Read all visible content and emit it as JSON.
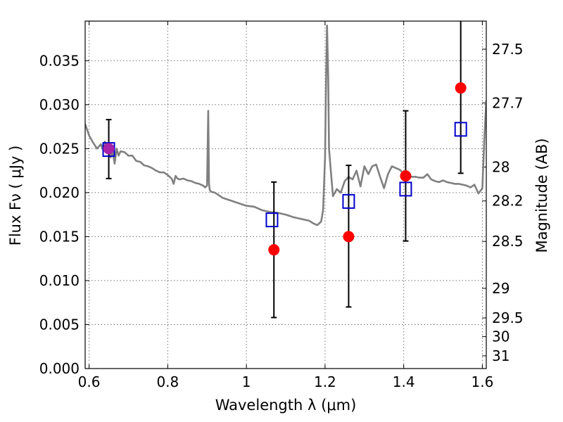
{
  "chart_data": {
    "type": "scatter",
    "xlabel": "Wavelength  λ (μm)",
    "ylabel": "Flux  Fν  ( μJy )",
    "y2label": "Magnitude (AB)",
    "xlim": [
      0.59,
      1.61
    ],
    "ylim": [
      0.0,
      0.0395
    ],
    "grid": true,
    "x_ticks": [
      0.6,
      0.8,
      1.0,
      1.2,
      1.4,
      1.6
    ],
    "x_tick_labels": [
      "0.6",
      "0.8",
      "1",
      "1.2",
      "1.4",
      "1.6"
    ],
    "y_ticks": [
      0.0,
      0.005,
      0.01,
      0.015,
      0.02,
      0.025,
      0.03,
      0.035
    ],
    "y_tick_labels": [
      "0.000",
      "0.005",
      "0.010",
      "0.015",
      "0.020",
      "0.025",
      "0.030",
      "0.035"
    ],
    "magnitude_ticks": [
      {
        "label": "27.5",
        "mag": 27.5
      },
      {
        "label": "27.7",
        "mag": 27.7
      },
      {
        "label": "28",
        "mag": 28.0
      },
      {
        "label": "28.2",
        "mag": 28.2
      },
      {
        "label": "28.5",
        "mag": 28.5
      },
      {
        "label": "29",
        "mag": 29.0
      },
      {
        "label": "29.5",
        "mag": 29.5
      },
      {
        "label": "30",
        "mag": 30.0
      },
      {
        "label": "31",
        "mag": 31.0
      }
    ],
    "series": [
      {
        "kind": "line",
        "color": "#808080",
        "x": [
          0.59,
          0.6,
          0.61,
          0.62,
          0.63,
          0.635,
          0.64,
          0.645,
          0.65,
          0.655,
          0.66,
          0.665,
          0.67,
          0.675,
          0.68,
          0.69,
          0.7,
          0.71,
          0.72,
          0.73,
          0.74,
          0.75,
          0.76,
          0.77,
          0.78,
          0.79,
          0.8,
          0.81,
          0.815,
          0.82,
          0.825,
          0.83,
          0.84,
          0.85,
          0.86,
          0.87,
          0.88,
          0.89,
          0.895,
          0.9,
          0.903,
          0.905,
          0.907,
          0.91,
          0.92,
          0.94,
          0.96,
          0.98,
          1.0,
          1.02,
          1.04,
          1.06,
          1.08,
          1.1,
          1.12,
          1.14,
          1.16,
          1.17,
          1.18,
          1.19,
          1.195,
          1.2,
          1.202,
          1.205,
          1.208,
          1.21,
          1.22,
          1.23,
          1.24,
          1.25,
          1.26,
          1.27,
          1.28,
          1.29,
          1.3,
          1.31,
          1.32,
          1.33,
          1.34,
          1.35,
          1.36,
          1.37,
          1.38,
          1.39,
          1.4,
          1.41,
          1.42,
          1.43,
          1.44,
          1.45,
          1.46,
          1.47,
          1.48,
          1.49,
          1.5,
          1.51,
          1.52,
          1.53,
          1.54,
          1.55,
          1.56,
          1.57,
          1.58,
          1.59,
          1.6,
          1.605,
          1.61
        ],
        "y": [
          0.0278,
          0.0265,
          0.0257,
          0.025,
          0.0255,
          0.0249,
          0.0258,
          0.0245,
          0.0256,
          0.024,
          0.0246,
          0.0233,
          0.025,
          0.0242,
          0.0247,
          0.0246,
          0.0242,
          0.0242,
          0.0236,
          0.0235,
          0.0231,
          0.023,
          0.0228,
          0.0225,
          0.0223,
          0.0223,
          0.022,
          0.0216,
          0.021,
          0.0219,
          0.0216,
          0.0215,
          0.0216,
          0.0214,
          0.0213,
          0.0211,
          0.021,
          0.0208,
          0.0206,
          0.0208,
          0.0293,
          0.021,
          0.0203,
          0.0201,
          0.02,
          0.0194,
          0.0191,
          0.0188,
          0.0185,
          0.0184,
          0.018,
          0.0178,
          0.0177,
          0.0175,
          0.0172,
          0.017,
          0.0168,
          0.0165,
          0.0163,
          0.0167,
          0.018,
          0.024,
          0.031,
          0.039,
          0.033,
          0.025,
          0.0196,
          0.0204,
          0.02,
          0.0213,
          0.0218,
          0.0215,
          0.0225,
          0.0207,
          0.023,
          0.0221,
          0.023,
          0.0232,
          0.0218,
          0.0205,
          0.0221,
          0.023,
          0.0228,
          0.0226,
          0.0222,
          0.022,
          0.0218,
          0.0218,
          0.0217,
          0.0217,
          0.0221,
          0.0215,
          0.0213,
          0.0212,
          0.0214,
          0.0212,
          0.0211,
          0.021,
          0.021,
          0.0209,
          0.0208,
          0.0206,
          0.0209,
          0.0199,
          0.0205,
          0.026,
          0.0305
        ]
      },
      {
        "kind": "filled-circle",
        "color": "#ff0000",
        "x": [
          0.65,
          1.07,
          1.26,
          1.405,
          1.545
        ],
        "y": [
          0.025,
          0.0135,
          0.015,
          0.0219,
          0.0319
        ],
        "yerr_low": [
          0.0216,
          0.0058,
          0.007,
          0.0145,
          0.0222
        ],
        "yerr_high": [
          0.0283,
          0.0212,
          0.0231,
          0.0293,
          0.04
        ]
      },
      {
        "kind": "open-square",
        "color": "#0000cc",
        "x": [
          0.65,
          1.065,
          1.26,
          1.405,
          1.545
        ],
        "y": [
          0.0249,
          0.0169,
          0.019,
          0.0204,
          0.0272
        ]
      }
    ],
    "overlap_marker_color": "#aa22aa"
  }
}
